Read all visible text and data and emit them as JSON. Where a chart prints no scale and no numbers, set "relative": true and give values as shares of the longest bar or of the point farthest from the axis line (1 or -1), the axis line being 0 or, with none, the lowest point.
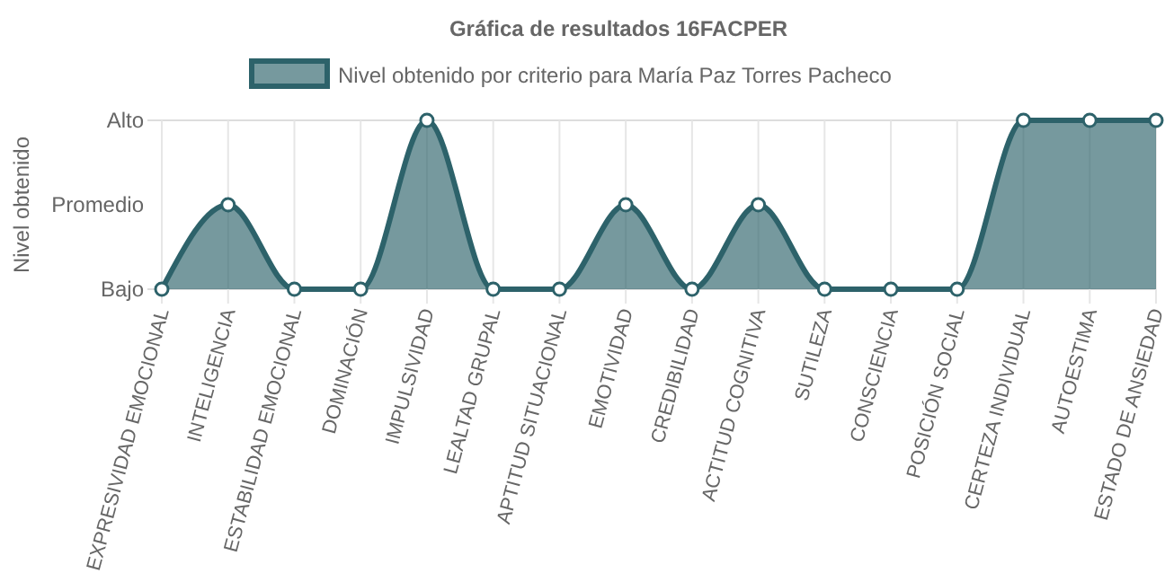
{
  "chart_data": {
    "type": "area",
    "title": "Gráfica de resultados 16FACPER",
    "ylabel": "Nivel obtenido",
    "categories": [
      "EXPRESIVIDAD EMOCIONAL",
      "INTELIGENCIA",
      "ESTABILIDAD EMOCIONAL",
      "DOMINACIÓN",
      "IMPULSIVIDAD",
      "LEALTAD GRUPAL",
      "APTITUD SITUACIONAL",
      "EMOTIVIDAD",
      "CREDIBILIDAD",
      "ACTITUD COGNITIVA",
      "SUTILEZA",
      "CONSCIENCIA",
      "POSICIÓN SOCIAL",
      "CERTEZA INDIVIDUAL",
      "AUTOESTIMA",
      "ESTADO DE ANSIEDAD"
    ],
    "series": [
      {
        "name": "Nivel obtenido por criterio para María Paz Torres Pacheco",
        "color": "#2d626a",
        "values": [
          0,
          0.5,
          0,
          0,
          1,
          0,
          0,
          0.5,
          0,
          0.5,
          0,
          0,
          0,
          1,
          1,
          1
        ]
      }
    ],
    "relative": true,
    "annotations": [
      "Bajo",
      "Promedio",
      "Alto"
    ],
    "grid": true,
    "legend": "top",
    "marker": "circle"
  }
}
